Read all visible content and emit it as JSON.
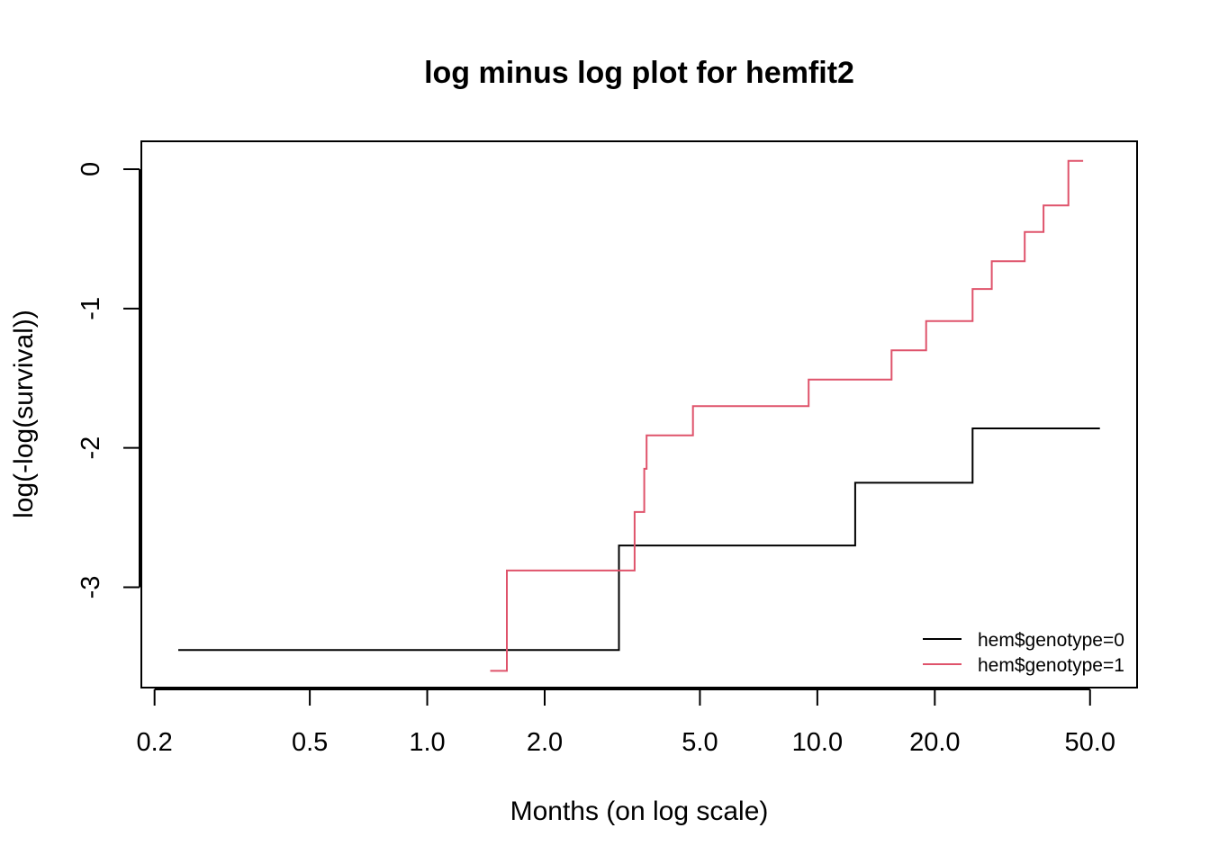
{
  "chart_data": {
    "type": "line",
    "title": "log minus log plot for hemfit2",
    "xlabel": "Months (on log scale)",
    "ylabel": "log(-log(survival))",
    "x_scale": "log",
    "xlim": [
      0.185,
      66
    ],
    "ylim": [
      -3.72,
      0.2
    ],
    "x_ticks": [
      0.2,
      0.5,
      1.0,
      2.0,
      5.0,
      10.0,
      20.0,
      50.0
    ],
    "x_tick_labels": [
      "0.2",
      "0.5",
      "1.0",
      "2.0",
      "5.0",
      "10.0",
      "20.0",
      "50.0"
    ],
    "y_ticks": [
      0,
      -1,
      -2,
      -3
    ],
    "y_tick_labels": [
      "0",
      "-1",
      "-2",
      "-3"
    ],
    "grid": false,
    "legend_position": "bottom-right",
    "step": true,
    "series": [
      {
        "name": "hem$genotype=0",
        "color": "#000000",
        "x": [
          0.23,
          3.1,
          12.5,
          25.0,
          53.0
        ],
        "y": [
          -3.45,
          -2.7,
          -2.25,
          -1.86,
          -1.86
        ]
      },
      {
        "name": "hem$genotype=1",
        "color": "#DF536B",
        "x": [
          1.45,
          1.6,
          3.4,
          3.6,
          3.65,
          4.8,
          9.5,
          15.5,
          19.0,
          25.0,
          28.0,
          34.0,
          38.0,
          44.0,
          48.0
        ],
        "y": [
          -3.6,
          -2.88,
          -2.46,
          -2.15,
          -1.91,
          -1.7,
          -1.51,
          -1.3,
          -1.09,
          -0.86,
          -0.66,
          -0.45,
          -0.26,
          0.06,
          0.06
        ]
      }
    ]
  }
}
